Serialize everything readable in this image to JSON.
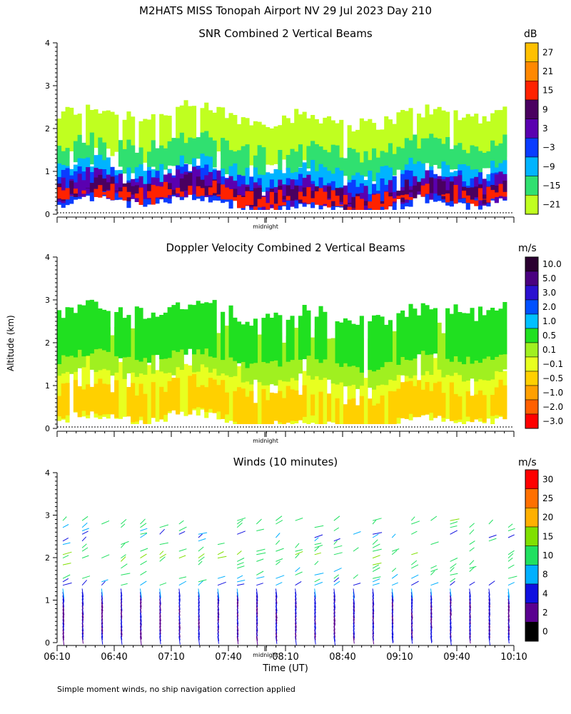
{
  "figure": {
    "title": "M2HATS MISS Tonopah Airport NV  29 Jul 2023 Day 210",
    "shared_ylabel": "Altitude (km)",
    "xlabel": "Time (UT)",
    "footnote": "Simple moment winds, no ship navigation correction applied",
    "midnight_label": "midnight"
  },
  "chart_data": [
    {
      "id": "snr",
      "type": "heatmap",
      "title": "SNR Combined 2 Vertical Beams",
      "unit": "dB",
      "ylim": [
        0,
        4
      ],
      "yticks": [
        "0",
        "1",
        "2",
        "3",
        "4"
      ],
      "colorbar": {
        "labels": [
          "27",
          "21",
          "15",
          "9",
          "3",
          "−3",
          "−9",
          "−15",
          "−21"
        ],
        "colors": [
          "#ffc000",
          "#ff8800",
          "#ff2200",
          "#4a0060",
          "#5a00b0",
          "#0a3cff",
          "#00b4ff",
          "#30e070",
          "#c0ff20"
        ]
      },
      "layers_km": [
        {
          "level": "-21",
          "base": 1.3,
          "top": 2.3,
          "color": "#c0ff20"
        },
        {
          "level": "-15",
          "base": 1.0,
          "top": 1.6,
          "color": "#30e070"
        },
        {
          "level": "-9",
          "base": 0.6,
          "top": 1.1,
          "color": "#00b4ff"
        },
        {
          "level": "-3",
          "base": 0.2,
          "top": 0.85,
          "color": "#0a3cff"
        },
        {
          "level": "3",
          "base": 0.3,
          "top": 0.75,
          "color": "#5a00b0"
        },
        {
          "level": "9",
          "base": 0.35,
          "top": 0.6,
          "color": "#4a0060"
        },
        {
          "level": "15",
          "base": 0.3,
          "top": 0.5,
          "color": "#ff2200"
        }
      ]
    },
    {
      "id": "doppler",
      "type": "heatmap",
      "title": "Doppler Velocity Combined 2 Vertical Beams",
      "unit": "m/s",
      "ylim": [
        0,
        4
      ],
      "yticks": [
        "0",
        "1",
        "2",
        "3",
        "4"
      ],
      "colorbar": {
        "labels": [
          "10.0",
          "5.0",
          "3.0",
          "2.0",
          "1.0",
          "0.5",
          "0.1",
          "−0.1",
          "−0.5",
          "−1.0",
          "−2.0",
          "−3.0"
        ],
        "colors": [
          "#2a0030",
          "#4a0080",
          "#2a10d0",
          "#0050ff",
          "#00c0ff",
          "#20e020",
          "#a0f020",
          "#e8ff20",
          "#ffd000",
          "#ffa000",
          "#ff6000",
          "#ff0000"
        ]
      },
      "layers_km": [
        {
          "level": "-0.1",
          "base": 0.15,
          "top": 1.4,
          "color": "#e8ff20"
        },
        {
          "level": "-0.5",
          "base": 0.2,
          "top": 0.9,
          "color": "#ffd000"
        },
        {
          "level": "0.1",
          "base": 1.2,
          "top": 2.2,
          "color": "#a0f020"
        },
        {
          "level": "0.5",
          "base": 1.6,
          "top": 2.7,
          "color": "#20e020"
        }
      ]
    },
    {
      "id": "winds",
      "type": "wind_barbs",
      "title": "Winds (10 minutes)",
      "unit": "m/s",
      "ylim": [
        0,
        4
      ],
      "yticks": [
        "0",
        "1",
        "2",
        "3",
        "4"
      ],
      "colorbar": {
        "labels": [
          "30",
          "25",
          "20",
          "15",
          "10",
          "8",
          "4",
          "2",
          "0"
        ],
        "colors": [
          "#ff0000",
          "#ff7000",
          "#ffb000",
          "#80e000",
          "#20e060",
          "#00b0ff",
          "#1010e0",
          "#5a0090",
          "#000000"
        ]
      },
      "xticks": [
        "06:10",
        "06:40",
        "07:10",
        "07:40",
        "08:10",
        "08:40",
        "09:10",
        "09:40",
        "10:10"
      ],
      "profile_times": [
        "06:10",
        "06:20",
        "06:30",
        "06:40",
        "06:50",
        "07:00",
        "07:10",
        "07:20",
        "07:30",
        "07:40",
        "07:50",
        "08:00",
        "08:10",
        "08:20",
        "08:30",
        "08:40",
        "08:50",
        "09:00",
        "09:10",
        "09:20",
        "09:30",
        "09:40",
        "09:50",
        "10:00"
      ],
      "typical_speed_by_altitude": [
        {
          "alt_km": 0.5,
          "speed_ms": 4
        },
        {
          "alt_km": 1.0,
          "speed_ms": 4
        },
        {
          "alt_km": 1.5,
          "speed_ms": 10
        },
        {
          "alt_km": 2.0,
          "speed_ms": 15
        },
        {
          "alt_km": 2.5,
          "speed_ms": 8
        },
        {
          "alt_km": 2.9,
          "speed_ms": 15
        }
      ]
    }
  ]
}
